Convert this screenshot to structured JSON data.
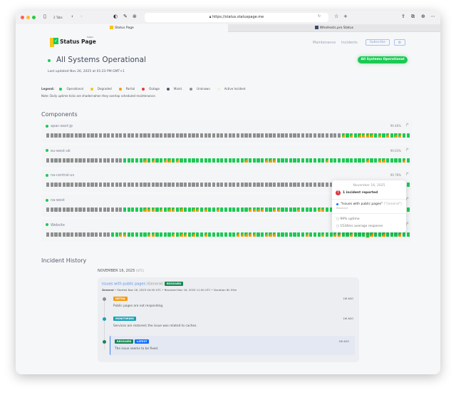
{
  "browser": {
    "tabs_count": "2 Tabs",
    "url": "https://status.statuspage.me",
    "tabs": [
      {
        "label": "Status Page"
      },
      {
        "label": "WhoHosts.pro Status"
      }
    ]
  },
  "header": {
    "logo_text": "Status Page",
    "logo_badge": "hosted",
    "nav": {
      "maintenance": "Maintenance",
      "incidents": "Incidents",
      "subscribe": "Subscribe",
      "settings_icon": "gear-icon"
    }
  },
  "status": {
    "title": "All Systems Operational",
    "last_updated": "Last updated Nov 26, 2025 at 01:23 PM GMT+1",
    "pill": "All Systems Operational"
  },
  "legend": {
    "label": "Legend:",
    "items": [
      {
        "label": "Operational",
        "color": "#1cc954"
      },
      {
        "label": "Degraded",
        "color": "#f5c518"
      },
      {
        "label": "Partial",
        "color": "#f59a0c"
      },
      {
        "label": "Outage",
        "color": "#e53935"
      },
      {
        "label": "Maint.",
        "color": "#4a5a6a"
      },
      {
        "label": "Unknown",
        "color": "#8e8e8e"
      },
      {
        "label": "Active Incident",
        "color": "#f8ecd6"
      }
    ],
    "note": "Note: Daily uptime ticks are shaded when they overlap scheduled maintenance."
  },
  "components_heading": "Components",
  "tick_codes": {
    "u": "Unknown",
    "o": "Operational",
    "p": "Partial"
  },
  "components": [
    {
      "name": "apac-east-jp",
      "uptime": "99.46%",
      "days": "uuuuuuuuuuuuuuuuuuuuuuuuuuuuuuuuuuuuuuuuuuuuuuuuuuuuuuuuuuuuuuuuuuuuuuuuupopoppppopopoppoo"
    },
    {
      "name": "eu-west-uk",
      "uptime": "99.63%",
      "days": "uuuuuuuuuuuuuuuuuuuooooopopooppopoooooooooooooooopoooopppoooooooooooopooooooooopooppoooopooo"
    },
    {
      "name": "na-central-us",
      "uptime": "99.78%",
      "days": "uuuuuuuuuuuuuuuuuuuuuuuuuuuuuuuuuuuuuuuuuuuuuuuuuuuuuuuuuuuuuuuuuuuuuuuuuuuuuuuuuuuuuuuuoo"
    },
    {
      "name": "na-west",
      "uptime": "",
      "days": "uuuuuuuuuuuuuuuuuuuooooopppopoppopooppopoopoooooooppppooppoooopoooopponpoooopoooopooopoopo"
    },
    {
      "name": "Website",
      "uptime": "",
      "days": "uuuuuuuuuuuuuuuuooppooooopp ooopoppopoopooooooopppppoopppooooooopooopooppoopoooopoopooopooopp"
    }
  ],
  "tooltip": {
    "date": "November 16, 2025",
    "count": "1 incident reported",
    "incident": "\"Issues with public pages\"",
    "incident_group": "(\"General\")",
    "incident_status": "Resolved",
    "uptime": "99% uptime",
    "response": "1534ms average response"
  },
  "history": {
    "heading": "Incident History",
    "date": "NOVEMBER 16, 2025",
    "tz": "(UTC)",
    "incident": {
      "title": "Issues with public pages",
      "group": "(General)",
      "badge": "RESOLVED",
      "meta_group": "General",
      "meta": " • Started Nov 16, 2025 04:50 UTC • Resolved Nov 16, 2025 11:50 UTC • Duration 6h 59m",
      "updates": [
        {
          "badge": "INITIAL",
          "badge_color": "#f59a0c",
          "text": "Public pages are not responding.",
          "ago": "1W AGO"
        },
        {
          "badge": "MONITORING",
          "badge_color": "#17a2b8",
          "text": "Services are restored; the issue was related to caches.",
          "ago": "1W AGO"
        },
        {
          "badge": "RESOLVED",
          "badge_color": "#198754",
          "badge2": "LATEST",
          "badge2_color": "#0d6efd",
          "text": "The issue seems to be fixed.",
          "ago": "1W AGO"
        }
      ]
    }
  }
}
